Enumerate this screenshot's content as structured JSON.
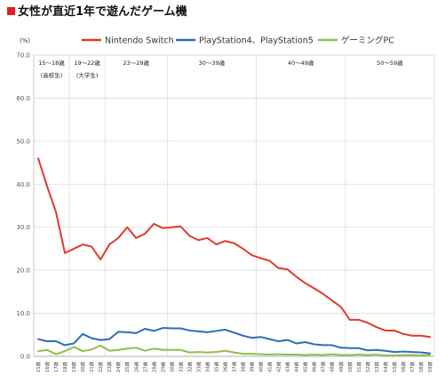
{
  "header": {
    "title": "女性が直近1年で遊んだゲーム機"
  },
  "chart_data": {
    "type": "line",
    "title": "女性が直近1年で遊んだゲーム機",
    "unit_label": "(%)",
    "ylim": [
      0,
      70
    ],
    "yticks": [
      "0.0",
      "10.0",
      "20.0",
      "30.0",
      "40.0",
      "50.0",
      "60.0",
      "70.0"
    ],
    "grid": true,
    "legend_position": "top",
    "categories": [
      "15歳",
      "16歳",
      "17歳",
      "18歳",
      "19歳",
      "20歳",
      "21歳",
      "22歳",
      "23歳",
      "24歳",
      "25歳",
      "26歳",
      "27歳",
      "28歳",
      "29歳",
      "30歳",
      "31歳",
      "32歳",
      "33歳",
      "34歳",
      "35歳",
      "36歳",
      "37歳",
      "38歳",
      "39歳",
      "40歳",
      "41歳",
      "42歳",
      "43歳",
      "44歳",
      "45歳",
      "46歳",
      "47歳",
      "48歳",
      "49歳",
      "50歳",
      "51歳",
      "52歳",
      "53歳",
      "54歳",
      "55歳",
      "56歳",
      "57歳",
      "58歳",
      "59歳"
    ],
    "age_bands": [
      {
        "label": "15～18歳",
        "sub": "(高校生)",
        "start": 0,
        "end": 3
      },
      {
        "label": "19～22歳",
        "sub": "(大学生)",
        "start": 4,
        "end": 7
      },
      {
        "label": "23～29歳",
        "sub": "",
        "start": 8,
        "end": 14
      },
      {
        "label": "30～39歳",
        "sub": "",
        "start": 15,
        "end": 24
      },
      {
        "label": "40～49歳",
        "sub": "",
        "start": 25,
        "end": 34
      },
      {
        "label": "50～59歳",
        "sub": "",
        "start": 35,
        "end": 44
      }
    ],
    "series": [
      {
        "name": "Nintendo Switch",
        "color": "#e03a2e",
        "values": [
          46.0,
          39.5,
          33.5,
          24.0,
          25.0,
          26.0,
          25.5,
          22.5,
          26.0,
          27.5,
          30.0,
          27.5,
          28.5,
          30.8,
          29.8,
          30.0,
          30.2,
          28.0,
          27.0,
          27.5,
          26.0,
          26.8,
          26.3,
          25.0,
          23.5,
          22.8,
          22.2,
          20.5,
          20.2,
          18.5,
          17.0,
          15.8,
          14.5,
          13.0,
          11.5,
          8.5,
          8.5,
          7.8,
          6.8,
          6.0,
          6.0,
          5.2,
          4.8,
          4.8,
          4.5
        ]
      },
      {
        "name": "PlayStation4、PlayStation5",
        "color": "#2f6db5",
        "values": [
          4.0,
          3.5,
          3.5,
          2.6,
          3.0,
          5.2,
          4.2,
          3.8,
          4.0,
          5.7,
          5.6,
          5.4,
          6.4,
          5.9,
          6.6,
          6.5,
          6.5,
          6.0,
          5.8,
          5.6,
          5.9,
          6.2,
          5.5,
          4.8,
          4.3,
          4.5,
          4.0,
          3.5,
          3.8,
          3.0,
          3.3,
          2.8,
          2.6,
          2.6,
          2.0,
          1.9,
          1.9,
          1.4,
          1.5,
          1.3,
          1.0,
          1.1,
          1.0,
          0.9,
          0.7
        ]
      },
      {
        "name": "ゲーミングPC",
        "color": "#8fbf4c",
        "values": [
          1.2,
          1.5,
          0.5,
          1.2,
          2.2,
          1.2,
          1.6,
          2.5,
          1.3,
          1.5,
          1.8,
          2.0,
          1.3,
          1.8,
          1.5,
          1.5,
          1.5,
          0.9,
          1.0,
          0.9,
          1.0,
          1.3,
          0.9,
          0.6,
          0.6,
          0.5,
          0.4,
          0.5,
          0.4,
          0.4,
          0.3,
          0.4,
          0.3,
          0.5,
          0.3,
          0.3,
          0.4,
          0.3,
          0.4,
          0.2,
          0.2,
          0.3,
          0.3,
          0.2,
          0.3
        ]
      }
    ]
  }
}
